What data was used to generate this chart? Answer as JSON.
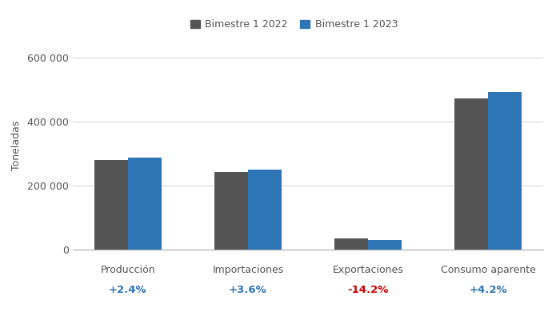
{
  "categories": [
    "Producción",
    "Importaciones",
    "Exportaciones",
    "Consumo aparente"
  ],
  "values_2022": [
    280000,
    242000,
    34000,
    472000
  ],
  "values_2023": [
    287000,
    251000,
    29000,
    492000
  ],
  "pct_changes": [
    "+2.4%",
    "+3.6%",
    "-14.2%",
    "+4.2%"
  ],
  "pct_colors": [
    "#2E75B6",
    "#2E75B6",
    "#CC0000",
    "#2E75B6"
  ],
  "color_2022": "#555555",
  "color_2023": "#2E75B6",
  "legend_2022": "Bimestre 1 2022",
  "legend_2023": "Bimestre 1 2023",
  "ylabel": "Toneladas",
  "ylim": [
    0,
    650000
  ],
  "yticks": [
    0,
    200000,
    400000,
    600000
  ],
  "ytick_labels": [
    "0",
    "200 000",
    "400 000",
    "600 000"
  ],
  "background_color": "#FFFFFF",
  "grid_color": "#D0D0D0",
  "bar_width": 0.28
}
